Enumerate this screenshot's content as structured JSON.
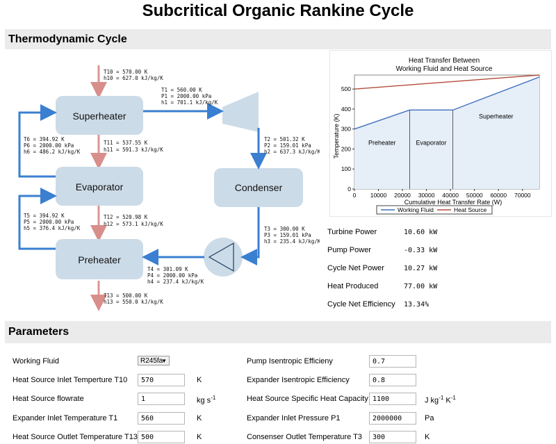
{
  "title": "Subcritical Organic Rankine Cycle",
  "sections": {
    "cycle": "Thermodynamic Cycle",
    "params": "Parameters"
  },
  "components": {
    "superheater": "Superheater",
    "evaporator": "Evaporator",
    "preheater": "Preheater",
    "condenser": "Condenser"
  },
  "states": {
    "t10": [
      "T10 = 570.00 K",
      "h10 = 627.0 kJ/kg/K"
    ],
    "t1": [
      "T1 = 560.00 K",
      "P1 = 2000.00 kPa",
      "h1 = 701.1 kJ/kg/K"
    ],
    "t6": [
      "T6 = 394.92 K",
      "P6 = 2000.00 kPa",
      "h6 = 486.2 kJ/kg/K"
    ],
    "t11": [
      "T11 = 537.55 K",
      "h11 = 591.3 kJ/kg/K"
    ],
    "t2": [
      "T2 = 501.32 K",
      "P2 = 159.01 kPa",
      "h2 = 637.3 kJ/kg/K"
    ],
    "t5": [
      "T5 = 394.92 K",
      "P5 = 2000.00 kPa",
      "h5 = 376.4 kJ/kg/K"
    ],
    "t12": [
      "T12 = 520.98 K",
      "h12 = 573.1 kJ/kg/K"
    ],
    "t3": [
      "T3 = 300.00 K",
      "P3 = 159.01 kPa",
      "h3 = 235.4 kJ/kg/K"
    ],
    "t4": [
      "T4 = 301.09 K",
      "P4 = 2000.00 kPa",
      "h4 = 237.4 kJ/kg/K"
    ],
    "t13": [
      "T13 = 500.00 K",
      "h13 = 550.0 kJ/kg/K"
    ]
  },
  "chart_data": {
    "type": "line",
    "title": "Heat Transfer Between Working Fluid and Heat Source",
    "title_lines": [
      "Heat Transfer Between",
      "Working Fluid and Heat Source"
    ],
    "xlabel": "Cumulative Heat Transfer Rate (W)",
    "ylabel": "Temperature (K)",
    "xlim": [
      0,
      77000
    ],
    "ylim": [
      0,
      570
    ],
    "xticks": [
      0,
      10000,
      20000,
      30000,
      40000,
      50000,
      60000,
      70000
    ],
    "yticks": [
      0,
      100,
      200,
      300,
      400,
      500
    ],
    "series": [
      {
        "name": "Working Fluid",
        "color": "#3f6fbf",
        "x": [
          0,
          23000,
          23000,
          41000,
          41000,
          77000
        ],
        "y": [
          300,
          395,
          395,
          395,
          395,
          560
        ]
      },
      {
        "name": "Heat Source",
        "color": "#b24a3a",
        "x": [
          0,
          77000
        ],
        "y": [
          500,
          570
        ]
      }
    ],
    "regions": [
      {
        "label": "Preheater",
        "x": [
          0,
          23000
        ]
      },
      {
        "label": "Evaporator",
        "x": [
          23000,
          41000
        ]
      },
      {
        "label": "Superheater",
        "x": [
          41000,
          77000
        ]
      }
    ],
    "legend_position": "bottom"
  },
  "results": [
    {
      "label": "Turbine Power",
      "value": "10.60 kW"
    },
    {
      "label": "Pump Power",
      "value": "-0.33 kW"
    },
    {
      "label": "Cycle Net Power",
      "value": "10.27 kW"
    },
    {
      "label": "Heat Produced",
      "value": "77.00 kW"
    },
    {
      "label": "Cycle Net Efficiency",
      "value": "13.34%"
    }
  ],
  "params": {
    "left": [
      {
        "label": "Working Fluid",
        "value": "R245fa",
        "unit": "",
        "type": "select"
      },
      {
        "label": "Heat Source Inlet Temperture T10",
        "value": "570",
        "unit": "K"
      },
      {
        "label": "Heat Source flowrate",
        "value": "1",
        "unit": "kg s",
        "sup": "-1"
      },
      {
        "label": "Expander Inlet Temperature T1",
        "value": "560",
        "unit": "K"
      },
      {
        "label": "Heat Source Outlet Temperature T13",
        "value": "500",
        "unit": "K"
      }
    ],
    "right": [
      {
        "label": "Pump Isentropic Efficieny",
        "value": "0.7",
        "unit": ""
      },
      {
        "label": "Expander Isentropic Efficiency",
        "value": "0.8",
        "unit": ""
      },
      {
        "label": "Heat Source Specific Heat Capacity",
        "value": "1100",
        "unit": "J kg",
        "sup": "-1",
        "unit2": " K",
        "sup2": "-1"
      },
      {
        "label": "Expander Inlet Pressure P1",
        "value": "2000000",
        "unit": "Pa"
      },
      {
        "label": "Consenser Outlet Temperature T3",
        "value": "300",
        "unit": "K"
      }
    ]
  }
}
